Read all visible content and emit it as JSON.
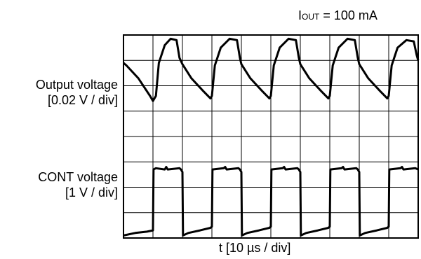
{
  "chart_data": {
    "type": "line",
    "annotation": {
      "main": "I",
      "subscript": "OUT",
      "rest": " = 100 mA"
    },
    "xlabel": "t [10 µs / div]",
    "x_divisions": 10,
    "y_divisions": 8,
    "series": [
      {
        "ylabel_line1": "Output voltage",
        "ylabel_line2": "[0.02 V / div]",
        "x": [
          0,
          0.1,
          0.5,
          0.9,
          1.0,
          1.1,
          1.2,
          1.4,
          1.6,
          1.8,
          1.9,
          2.0,
          2.3,
          2.7,
          2.95,
          3.0,
          3.1,
          3.3,
          3.6,
          3.85,
          3.95,
          4.0,
          4.3,
          4.7,
          4.95,
          5.0,
          5.1,
          5.3,
          5.6,
          5.85,
          5.95,
          6.0,
          6.3,
          6.7,
          6.95,
          7.0,
          7.1,
          7.3,
          7.6,
          7.85,
          7.95,
          8.0,
          8.3,
          8.7,
          8.95,
          9.0,
          9.1,
          9.3,
          9.6,
          9.85,
          9.95,
          10.0
        ],
        "y": [
          6.9,
          6.8,
          6.3,
          5.6,
          5.4,
          5.6,
          6.9,
          7.6,
          7.85,
          7.8,
          7.1,
          6.85,
          6.3,
          5.8,
          5.5,
          5.6,
          6.8,
          7.5,
          7.85,
          7.8,
          7.1,
          6.85,
          6.3,
          5.8,
          5.5,
          5.6,
          6.8,
          7.5,
          7.85,
          7.8,
          7.1,
          6.85,
          6.3,
          5.8,
          5.5,
          5.6,
          6.8,
          7.5,
          7.85,
          7.8,
          7.1,
          6.85,
          6.3,
          5.8,
          5.5,
          5.6,
          6.8,
          7.5,
          7.8,
          7.75,
          7.2,
          7.0
        ]
      },
      {
        "ylabel_line1": "CONT voltage",
        "ylabel_line2": "[1 V / div]",
        "x": [
          0,
          0.4,
          0.8,
          1.0,
          1.02,
          1.1,
          1.4,
          1.45,
          1.5,
          1.9,
          1.95,
          2.0,
          2.02,
          2.2,
          2.6,
          2.95,
          3.0,
          3.02,
          3.4,
          3.45,
          3.5,
          3.9,
          3.95,
          4.0,
          4.02,
          4.2,
          4.6,
          4.95,
          5.0,
          5.02,
          5.4,
          5.45,
          5.5,
          5.9,
          5.95,
          6.0,
          6.02,
          6.2,
          6.6,
          6.95,
          7.0,
          7.02,
          7.4,
          7.45,
          7.5,
          7.9,
          7.95,
          8.0,
          8.02,
          8.2,
          8.6,
          8.95,
          9.0,
          9.02,
          9.4,
          9.45,
          9.5,
          9.9,
          10.0
        ],
        "y": [
          0.1,
          0.2,
          0.25,
          0.3,
          2.7,
          2.75,
          2.7,
          2.8,
          2.7,
          2.75,
          2.7,
          2.6,
          0.1,
          0.2,
          0.3,
          0.4,
          0.45,
          2.7,
          2.75,
          2.8,
          2.7,
          2.75,
          2.7,
          2.6,
          0.1,
          0.2,
          0.3,
          0.4,
          0.45,
          2.7,
          2.75,
          2.8,
          2.7,
          2.75,
          2.7,
          2.6,
          0.1,
          0.2,
          0.3,
          0.4,
          0.45,
          2.7,
          2.75,
          2.8,
          2.7,
          2.75,
          2.7,
          2.6,
          0.1,
          0.2,
          0.3,
          0.4,
          0.45,
          2.7,
          2.75,
          2.8,
          2.7,
          2.75,
          2.7
        ]
      }
    ]
  }
}
